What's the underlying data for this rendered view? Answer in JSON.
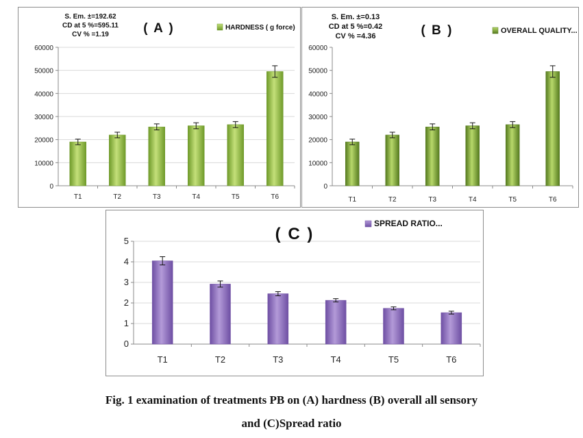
{
  "caption": {
    "line1": "Fig. 1 examination of treatments PB on (A) hardness  (B) overall all sensory",
    "line2": "and (C)Spread ratio"
  },
  "chart_data": [
    {
      "type": "bar",
      "panel_label": "( A )",
      "stats": [
        "S. Em. ±=192.62",
        "CD at 5 %=595.11",
        "CV % =1.19"
      ],
      "categories": [
        "T1",
        "T2",
        "T3",
        "T4",
        "T5",
        "T6"
      ],
      "series": [
        {
          "name": "HARDNESS ( g force)",
          "values": [
            19000,
            22000,
            25500,
            26000,
            26500,
            49500
          ],
          "errors": [
            1200,
            1200,
            1300,
            1300,
            1300,
            2500
          ]
        }
      ],
      "ylim": [
        0,
        60000
      ],
      "yticks": [
        "0",
        "10000",
        "20000",
        "30000",
        "40000",
        "50000",
        "60000"
      ],
      "legend_position": "top-right",
      "grid": true,
      "colors": {
        "bar_light": "#c4e07a",
        "bar_dark": "#6f9a2a",
        "grid": "#d9d9d9"
      }
    },
    {
      "type": "bar",
      "panel_label": "( B )",
      "stats": [
        "S. Em. ±=0.13",
        "CD at 5 %=0.42",
        "CV % =4.36"
      ],
      "categories": [
        "T1",
        "T2",
        "T3",
        "T4",
        "T5",
        "T6"
      ],
      "series": [
        {
          "name": "OVERALL QUALITY...",
          "values": [
            19000,
            22000,
            25500,
            26000,
            26500,
            49500
          ],
          "errors": [
            1200,
            1200,
            1300,
            1300,
            1300,
            2500
          ]
        }
      ],
      "ylim": [
        0,
        60000
      ],
      "yticks": [
        "0",
        "10000",
        "20000",
        "30000",
        "40000",
        "50000",
        "60000"
      ],
      "legend_position": "top-right",
      "grid": false,
      "colors": {
        "bar_light": "#b7d86a",
        "bar_dark": "#557a1f",
        "grid": "#d9d9d9"
      }
    },
    {
      "type": "bar",
      "panel_label": "( C )",
      "stats": [],
      "categories": [
        "T1",
        "T2",
        "T3",
        "T4",
        "T5",
        "T6"
      ],
      "series": [
        {
          "name": "SPREAD RATIO...",
          "values": [
            4.05,
            2.92,
            2.45,
            2.13,
            1.74,
            1.53
          ],
          "errors": [
            0.2,
            0.15,
            0.1,
            0.08,
            0.07,
            0.07
          ]
        }
      ],
      "ylim": [
        0,
        5
      ],
      "yticks": [
        "0",
        "1",
        "2",
        "3",
        "4",
        "5"
      ],
      "legend_position": "top-right",
      "grid": true,
      "colors": {
        "bar_light": "#b39ad8",
        "bar_dark": "#6e4fa3",
        "grid": "#d9d9d9"
      }
    }
  ]
}
